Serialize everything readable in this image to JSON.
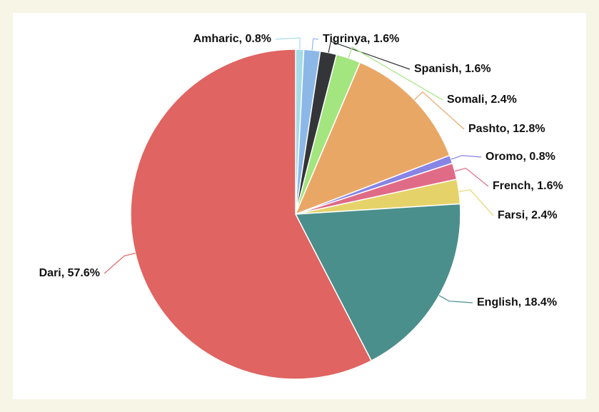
{
  "chart_data": {
    "type": "pie",
    "categories": [
      "Amharic",
      "Tigrinya",
      "Spanish",
      "Somali",
      "Pashto",
      "Oromo",
      "French",
      "Farsi",
      "English",
      "Dari"
    ],
    "values": [
      0.8,
      1.6,
      1.6,
      2.4,
      12.8,
      0.8,
      1.6,
      2.4,
      18.4,
      57.6
    ],
    "value_labels": [
      ", 0.8%",
      ", 1.6%",
      ", 1.6%",
      ", 2.4%",
      ", 12.8%",
      ", 0.8%",
      ", 1.6%",
      ", 2.4%",
      ", 18.4%",
      ", 57.6%"
    ],
    "colors": [
      "#a6dbe8",
      "#8cb8e8",
      "#333538",
      "#a3e57f",
      "#e9a766",
      "#8784e6",
      "#e06b86",
      "#e5d36a",
      "#4a8f8c",
      "#e06461"
    ]
  }
}
